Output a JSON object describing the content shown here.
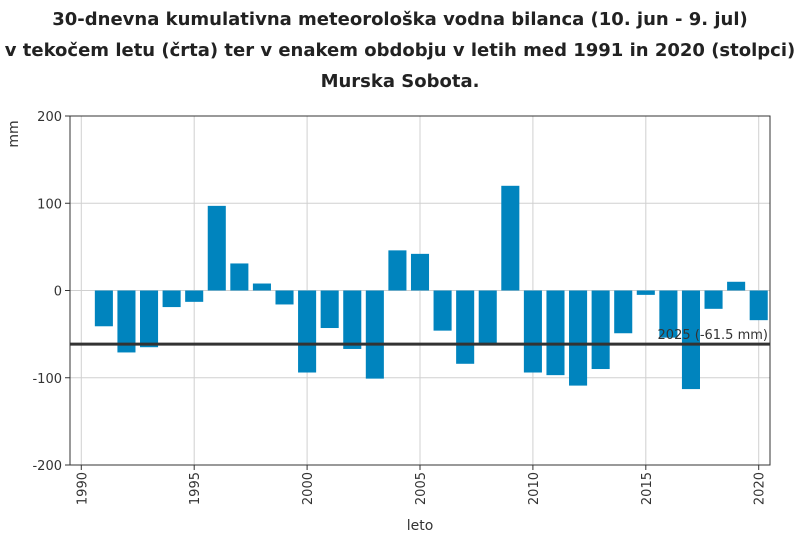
{
  "title_lines": [
    "30-dnevna kumulativna meteorološka vodna bilanca (10. jun - 9. jul)",
    "v tekočem letu (črta) ter v enakem obdobju v letih med 1991 in 2020 (stolpci)",
    "Murska Sobota."
  ],
  "colors": {
    "bar": "#0084be",
    "line": "#333333",
    "grid": "#d0d0d0"
  },
  "chart_data": {
    "type": "bar",
    "title": "30-dnevna kumulativna meteorološka vodna bilanca (10. jun - 9. jul) v tekočem letu (črta) ter v enakem obdobju v letih med 1991 in 2020 (stolpci) Murska Sobota.",
    "xlabel": "leto",
    "ylabel": "mm",
    "xlim": [
      1989.5,
      2020.5
    ],
    "ylim": [
      -200,
      200
    ],
    "x_ticks": [
      1990,
      1995,
      2000,
      2005,
      2010,
      2015,
      2020
    ],
    "y_ticks": [
      -200,
      -100,
      0,
      100,
      200
    ],
    "grid": true,
    "categories": [
      1991,
      1992,
      1993,
      1994,
      1995,
      1996,
      1997,
      1998,
      1999,
      2000,
      2001,
      2002,
      2003,
      2004,
      2005,
      2006,
      2007,
      2008,
      2009,
      2010,
      2011,
      2012,
      2013,
      2014,
      2015,
      2016,
      2017,
      2018,
      2019,
      2020
    ],
    "values": [
      -41,
      -71,
      -65,
      -19,
      -13,
      97,
      31,
      8,
      -16,
      -94,
      -43,
      -67,
      -101,
      46,
      42,
      -46,
      -84,
      -61,
      120,
      -94,
      -97,
      -109,
      -90,
      -49,
      -5,
      -54,
      -113,
      -21,
      10,
      -34
    ],
    "reference_line": {
      "value": -61.5,
      "label": "2025 (-61.5 mm)"
    }
  }
}
